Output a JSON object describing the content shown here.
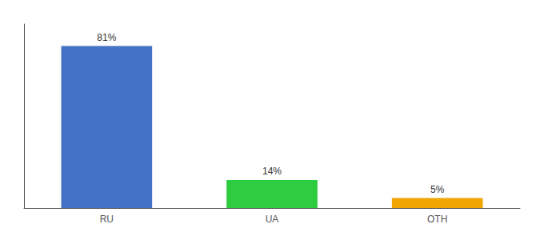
{
  "chart_data": {
    "type": "bar",
    "categories": [
      "RU",
      "UA",
      "OTH"
    ],
    "values": [
      81,
      14,
      5
    ],
    "value_labels": [
      "81%",
      "14%",
      "5%"
    ],
    "colors": [
      "#4472c4",
      "#2ecc40",
      "#f0a500"
    ],
    "ylim": [
      0,
      92
    ],
    "yticks": [],
    "tick_labels": "x",
    "data_labels": true,
    "grid": false
  }
}
